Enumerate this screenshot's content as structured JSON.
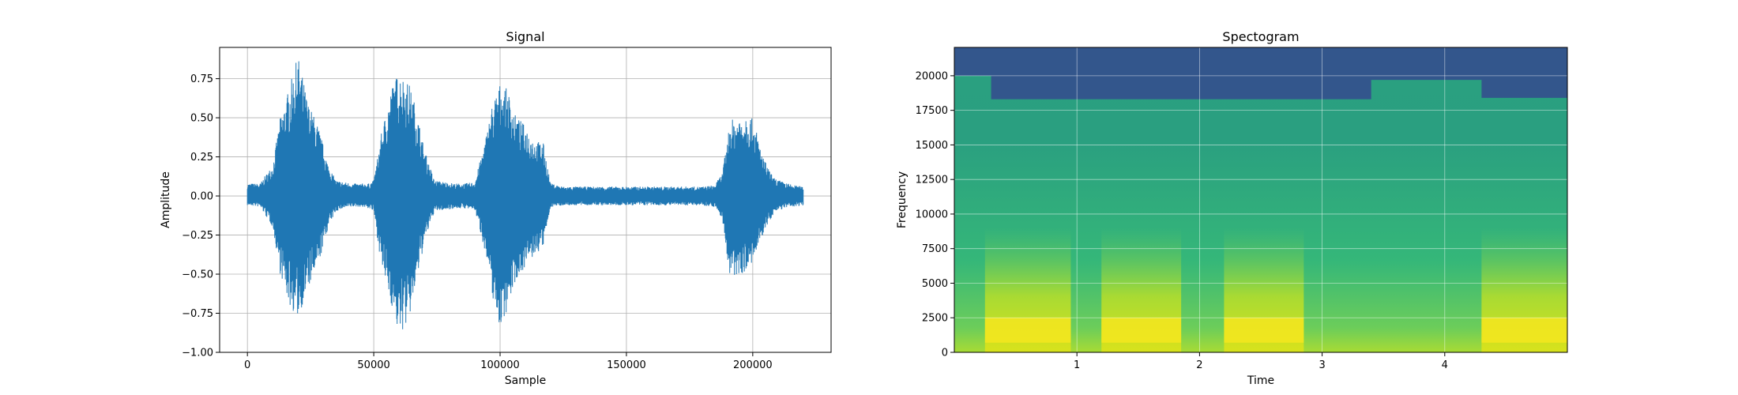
{
  "chart_data": [
    {
      "type": "line",
      "title": "Signal",
      "xlabel": "Sample",
      "ylabel": "Amplitude",
      "xlim": [
        -11000,
        231000
      ],
      "ylim": [
        -1.0,
        0.95
      ],
      "grid": true,
      "color": "#1f77b4",
      "x_ticks": [
        0,
        50000,
        100000,
        150000,
        200000
      ],
      "x_tick_labels": [
        "0",
        "50000",
        "100000",
        "150000",
        "200000"
      ],
      "y_ticks": [
        -1.0,
        -0.75,
        -0.5,
        -0.25,
        0.0,
        0.25,
        0.5,
        0.75
      ],
      "y_tick_labels": [
        "−1.00",
        "−0.75",
        "−0.50",
        "−0.25",
        "0.00",
        "0.25",
        "0.50",
        "0.75"
      ],
      "series": [
        {
          "x": [
            0,
            5000,
            10000,
            13000,
            17000,
            20000,
            24000,
            28000,
            32000,
            35000,
            38000,
            42000,
            45000,
            48000,
            50000,
            53000,
            57000,
            60000,
            64000,
            67000,
            70000,
            74000,
            78000,
            82000,
            86000,
            90000,
            94000,
            97000,
            100000,
            103000,
            106000,
            110000,
            114000,
            117000,
            120000,
            125000,
            135000,
            145000,
            155000,
            165000,
            175000,
            180000,
            185000,
            188000,
            191000,
            195000,
            198000,
            201000,
            204000,
            208000,
            212000,
            216000,
            220000
          ],
          "upper": [
            0.08,
            0.08,
            0.2,
            0.5,
            0.72,
            0.9,
            0.6,
            0.45,
            0.2,
            0.1,
            0.09,
            0.08,
            0.08,
            0.08,
            0.1,
            0.4,
            0.7,
            0.8,
            0.72,
            0.55,
            0.3,
            0.1,
            0.09,
            0.08,
            0.08,
            0.09,
            0.35,
            0.6,
            0.72,
            0.68,
            0.52,
            0.45,
            0.35,
            0.35,
            0.08,
            0.06,
            0.06,
            0.06,
            0.06,
            0.06,
            0.06,
            0.06,
            0.07,
            0.15,
            0.48,
            0.52,
            0.55,
            0.45,
            0.25,
            0.12,
            0.09,
            0.07,
            0.06
          ],
          "lower": [
            -0.06,
            -0.07,
            -0.2,
            -0.5,
            -0.72,
            -0.78,
            -0.6,
            -0.45,
            -0.2,
            -0.1,
            -0.08,
            -0.07,
            -0.07,
            -0.08,
            -0.1,
            -0.45,
            -0.7,
            -0.9,
            -0.8,
            -0.55,
            -0.3,
            -0.1,
            -0.09,
            -0.08,
            -0.08,
            -0.09,
            -0.35,
            -0.65,
            -0.85,
            -0.72,
            -0.55,
            -0.45,
            -0.38,
            -0.33,
            -0.07,
            -0.06,
            -0.06,
            -0.06,
            -0.06,
            -0.06,
            -0.06,
            -0.06,
            -0.07,
            -0.15,
            -0.55,
            -0.5,
            -0.48,
            -0.4,
            -0.25,
            -0.12,
            -0.08,
            -0.07,
            -0.06
          ]
        }
      ]
    },
    {
      "type": "heatmap",
      "title": "Spectogram",
      "xlabel": "Time",
      "ylabel": "Frequency",
      "xlim": [
        0.0,
        5.0
      ],
      "ylim": [
        0,
        22050
      ],
      "grid": true,
      "colormap": "viridis",
      "x_ticks": [
        1,
        2,
        3,
        4
      ],
      "x_tick_labels": [
        "1",
        "2",
        "3",
        "4"
      ],
      "y_ticks": [
        0,
        2500,
        5000,
        7500,
        10000,
        12500,
        15000,
        17500,
        20000
      ],
      "y_tick_labels": [
        "0",
        "2500",
        "5000",
        "7500",
        "10000",
        "12500",
        "15000",
        "17500",
        "20000"
      ],
      "speech_segments": [
        [
          0.25,
          0.95
        ],
        [
          1.2,
          1.85
        ],
        [
          2.2,
          2.85
        ],
        [
          4.3,
          5.0
        ]
      ],
      "cutoff_profile": [
        {
          "t": [
            0.0,
            0.3
          ],
          "freq": 20000
        },
        {
          "t": [
            0.3,
            3.4
          ],
          "freq": 18300
        },
        {
          "t": [
            3.4,
            4.3
          ],
          "freq": 19700
        },
        {
          "t": [
            4.3,
            5.0
          ],
          "freq": 18400
        }
      ]
    }
  ]
}
